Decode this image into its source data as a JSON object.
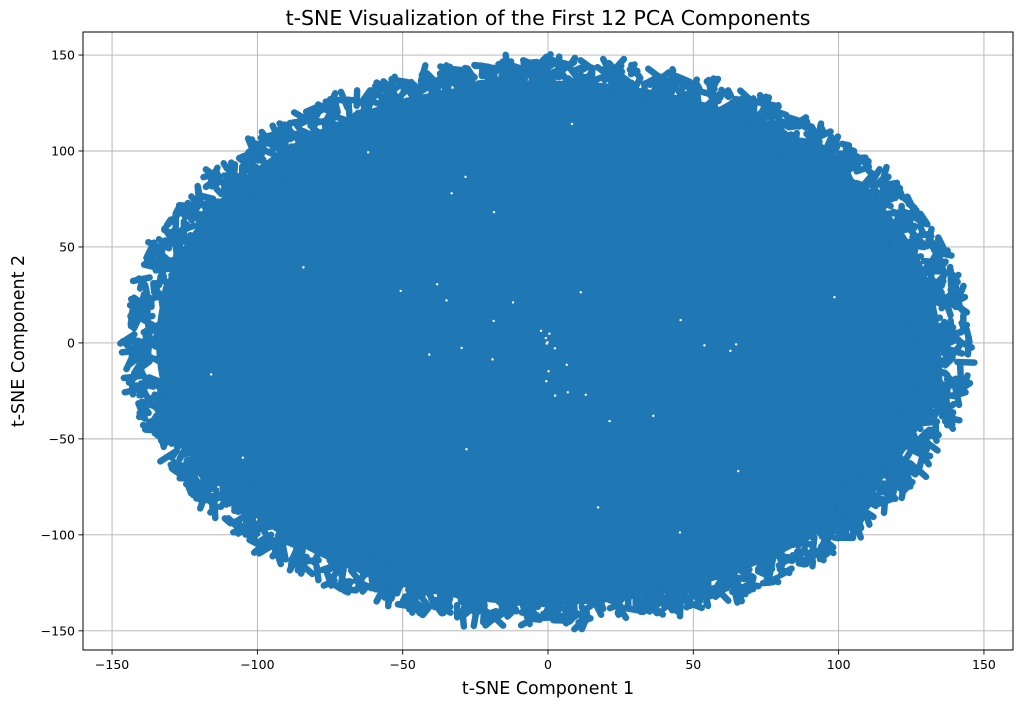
{
  "chart_data": {
    "type": "scatter",
    "title": "t-SNE Visualization of the First 12 PCA Components",
    "xlabel": "t-SNE Component 1",
    "ylabel": "t-SNE Component 2",
    "xlim": [
      -160,
      160
    ],
    "ylim": [
      -160,
      162
    ],
    "x_ticks": [
      -150,
      -100,
      -50,
      0,
      50,
      100,
      150
    ],
    "y_ticks": [
      -150,
      -100,
      -50,
      0,
      50,
      100,
      150
    ],
    "grid": true,
    "legend": "none",
    "series": [
      {
        "color": "#1f77b4",
        "distribution": {
          "shape": "ellipse",
          "center": [
            0,
            0
          ],
          "radius_x": 145,
          "radius_y": 147
        }
      }
    ]
  }
}
